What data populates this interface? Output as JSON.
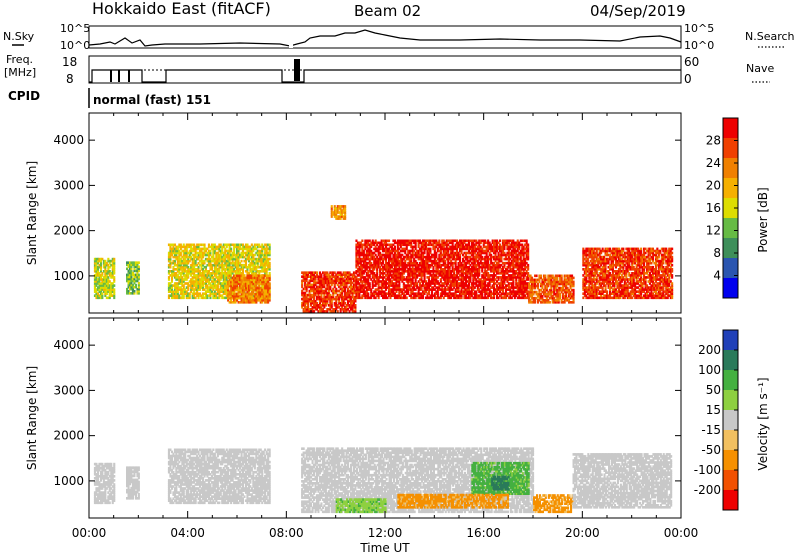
{
  "header": {
    "station": "Hokkaido East (fitACF)",
    "beam": "Beam 02",
    "date": "04/Sep/2019"
  },
  "strip_panels": {
    "nsky_label": "N.Sky",
    "nsky_ticks": [
      "10^5",
      "10^0"
    ],
    "nsearch_label": "N.Search",
    "nsearch_ticks": [
      "10^5",
      "10^0"
    ],
    "freq_label": "Freq.",
    "freq_unit": "[MHz]",
    "freq_ticks": [
      "18",
      "8"
    ],
    "nave_label": "Nave",
    "nave_ticks": [
      "60",
      "0"
    ],
    "cpid_label": "CPID",
    "cpid_text": "normal (fast) 151"
  },
  "colors": {
    "power_scale": [
      "#0000ee",
      "#2a55b0",
      "#3e8f5a",
      "#66bb44",
      "#dddd00",
      "#f5b000",
      "#f08000",
      "#f04000",
      "#ee0000"
    ],
    "velocity_scale": [
      "#ee0000",
      "#f25000",
      "#f59000",
      "#f2c060",
      "#c8c8c8",
      "#8ed040",
      "#44b040",
      "#2a7a5a",
      "#2040b8"
    ]
  },
  "chart_data": [
    {
      "type": "heatmap",
      "title": "",
      "xlabel": "",
      "ylabel": "Slant Range [km]",
      "xlim": [
        "00:00",
        "24:00"
      ],
      "ylim": [
        180,
        4600
      ],
      "xticks": [
        "00:00",
        "04:00",
        "08:00",
        "12:00",
        "16:00",
        "20:00",
        "00:00"
      ],
      "yticks": [
        1000,
        2000,
        3000,
        4000
      ],
      "colorbar": {
        "label": "Power [dB]",
        "ticks": [
          "28",
          "24",
          "20",
          "16",
          "12",
          "8",
          "4"
        ],
        "range": [
          0,
          30
        ]
      },
      "regions": [
        {
          "t_start": 0.2,
          "t_end": 1.0,
          "r_min": 500,
          "r_max": 1400,
          "level": 14
        },
        {
          "t_start": 1.5,
          "t_end": 2.0,
          "r_min": 600,
          "r_max": 1300,
          "level": 12
        },
        {
          "t_start": 3.2,
          "t_end": 7.3,
          "r_min": 500,
          "r_max": 1700,
          "level": 16
        },
        {
          "t_start": 5.6,
          "t_end": 7.3,
          "r_min": 400,
          "r_max": 1000,
          "level": 22
        },
        {
          "t_start": 8.6,
          "t_end": 10.8,
          "r_min": 200,
          "r_max": 1100,
          "level": 26
        },
        {
          "t_start": 10.8,
          "t_end": 17.8,
          "r_min": 500,
          "r_max": 1800,
          "level": 28
        },
        {
          "t_start": 17.8,
          "t_end": 19.6,
          "r_min": 400,
          "r_max": 1000,
          "level": 24
        },
        {
          "t_start": 20.0,
          "t_end": 23.6,
          "r_min": 500,
          "r_max": 1600,
          "level": 26
        },
        {
          "t_start": 9.8,
          "t_end": 10.4,
          "r_min": 2250,
          "r_max": 2550,
          "level": 20
        }
      ]
    },
    {
      "type": "heatmap",
      "title": "",
      "xlabel": "Time UT",
      "ylabel": "Slant Range [km]",
      "xlim": [
        "00:00",
        "24:00"
      ],
      "ylim": [
        180,
        4600
      ],
      "xticks": [
        "00:00",
        "04:00",
        "08:00",
        "12:00",
        "16:00",
        "20:00",
        "00:00"
      ],
      "yticks": [
        1000,
        2000,
        3000,
        4000
      ],
      "colorbar": {
        "label": "Velocity [m s⁻¹]",
        "ticks": [
          "200",
          "100",
          "50",
          "15",
          "-15",
          "-50",
          "-100",
          "-200"
        ],
        "range": [
          -250,
          250
        ]
      },
      "regions": [
        {
          "t_start": 0.2,
          "t_end": 1.0,
          "r_min": 500,
          "r_max": 1400,
          "velocity": 0
        },
        {
          "t_start": 1.5,
          "t_end": 2.0,
          "r_min": 600,
          "r_max": 1300,
          "velocity": 0
        },
        {
          "t_start": 3.2,
          "t_end": 7.3,
          "r_min": 500,
          "r_max": 1700,
          "velocity": 0
        },
        {
          "t_start": 8.6,
          "t_end": 18.0,
          "r_min": 300,
          "r_max": 1700,
          "velocity": 0
        },
        {
          "t_start": 15.5,
          "t_end": 17.8,
          "r_min": 700,
          "r_max": 1400,
          "velocity": 60
        },
        {
          "t_start": 16.3,
          "t_end": 17.0,
          "r_min": 800,
          "r_max": 1100,
          "velocity": 180
        },
        {
          "t_start": 10.0,
          "t_end": 12.0,
          "r_min": 300,
          "r_max": 600,
          "velocity": 40
        },
        {
          "t_start": 12.5,
          "t_end": 17.0,
          "r_min": 400,
          "r_max": 700,
          "velocity": -60
        },
        {
          "t_start": 18.0,
          "t_end": 19.6,
          "r_min": 300,
          "r_max": 700,
          "velocity": -60
        },
        {
          "t_start": 19.6,
          "t_end": 23.6,
          "r_min": 400,
          "r_max": 1600,
          "velocity": 0
        }
      ]
    }
  ]
}
